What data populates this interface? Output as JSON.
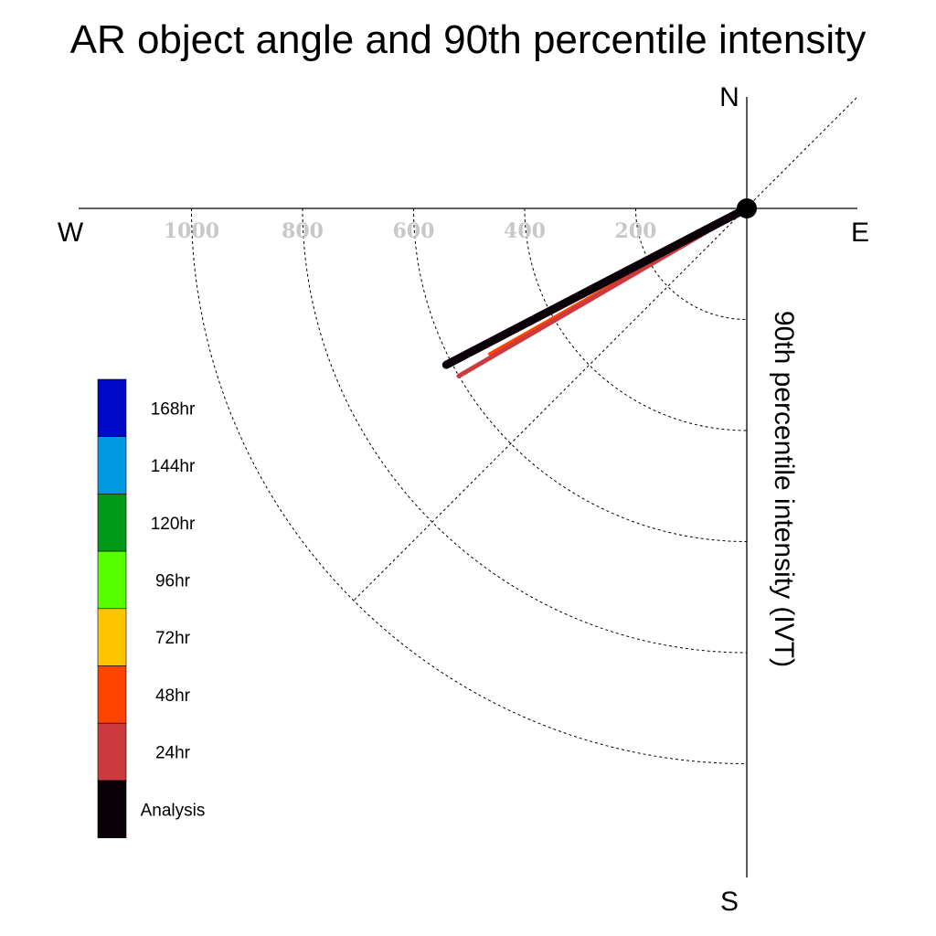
{
  "chart_data": {
    "type": "polar-vector",
    "title": "AR object angle and 90th percentile intensity",
    "ylabel": "90th percentile intensity (IVT)",
    "compass": {
      "north": "N",
      "south": "S",
      "east": "E",
      "west": "W"
    },
    "radial_ticks": [
      "200",
      "400",
      "600",
      "800",
      "1000"
    ],
    "radial_tick_values": [
      200,
      400,
      600,
      800,
      1000
    ],
    "rlim": [
      0,
      1000
    ],
    "grid": true,
    "legend_position": "lower-left",
    "series": [
      {
        "name": "Analysis",
        "color": "#0a0008",
        "angle_deg_cw_from_north": 242.5,
        "intensity": 610
      },
      {
        "name": "24hr",
        "color": "#cc3a3d",
        "angle_deg_cw_from_north": 239.8,
        "intensity": 600
      },
      {
        "name": "48hr",
        "color": "#ff4400",
        "angle_deg_cw_from_north": 240.5,
        "intensity": 532
      }
    ],
    "legend": [
      {
        "label": "168hr",
        "color": "#0008c8"
      },
      {
        "label": "144hr",
        "color": "#009ae0"
      },
      {
        "label": "120hr",
        "color": "#009a18"
      },
      {
        "label": "96hr",
        "color": "#55ff00"
      },
      {
        "label": "72hr",
        "color": "#ffc400"
      },
      {
        "label": "48hr",
        "color": "#ff4400"
      },
      {
        "label": "24hr",
        "color": "#cc3a3d"
      },
      {
        "label": "Analysis",
        "color": "#0a0008"
      }
    ]
  }
}
